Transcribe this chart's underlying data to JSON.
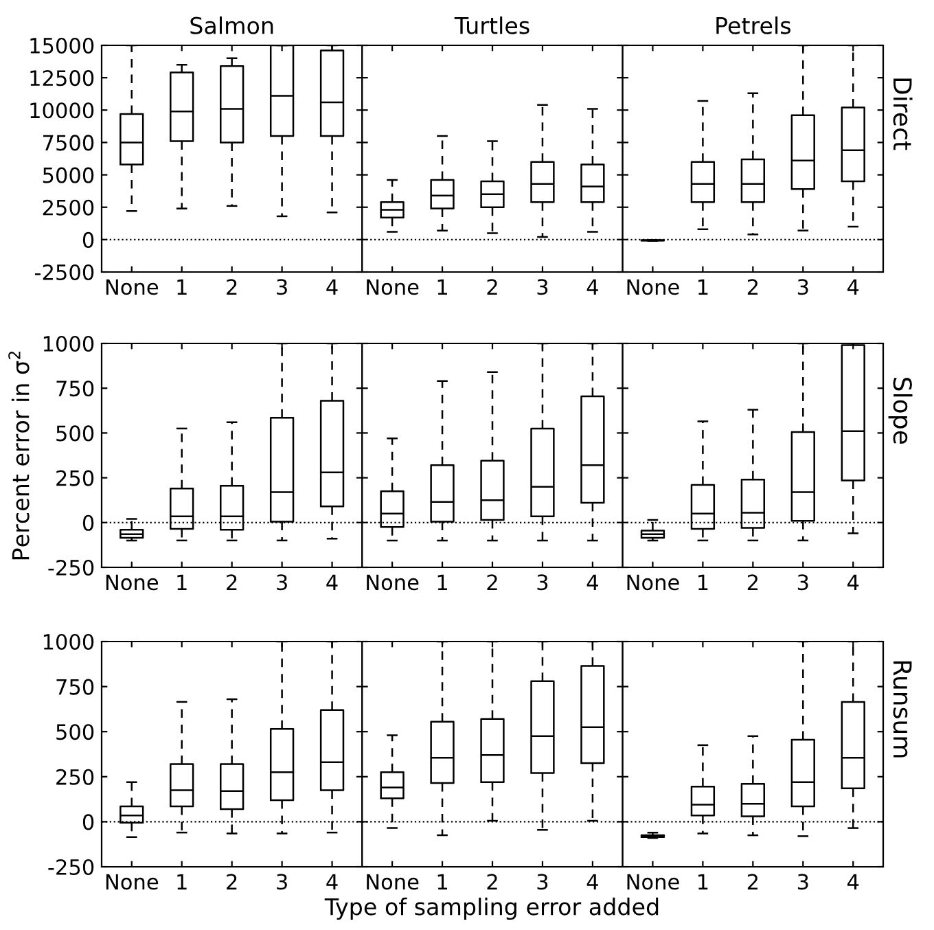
{
  "chart_data": [
    {
      "type": "box",
      "title": "Salmon",
      "categories": [
        "None",
        "1",
        "2",
        "3",
        "4"
      ],
      "ylim": [
        -2500,
        15000
      ],
      "yticks": [
        -2500,
        0,
        2500,
        5000,
        7500,
        10000,
        12500,
        15000
      ],
      "ref_lines": [
        {
          "axis": "y",
          "value": 0,
          "line_style": "dotted"
        }
      ],
      "boxes": [
        {
          "low": 2200,
          "q1": 5800,
          "median": 7500,
          "q3": 9700,
          "high": 15000
        },
        {
          "low": 2400,
          "q1": 7600,
          "median": 9900,
          "q3": 12900,
          "high": 13500
        },
        {
          "low": 2600,
          "q1": 7500,
          "median": 10100,
          "q3": 13400,
          "high": 14000
        },
        {
          "low": 1800,
          "q1": 8000,
          "median": 11100,
          "q3": 15000,
          "high": 15000
        },
        {
          "low": 2100,
          "q1": 8000,
          "median": 10600,
          "q3": 14600,
          "high": 15000
        }
      ]
    },
    {
      "type": "box",
      "title": "Turtles",
      "categories": [
        "None",
        "1",
        "2",
        "3",
        "4"
      ],
      "ylim": [
        -2500,
        15000
      ],
      "yticks": [
        -2500,
        0,
        2500,
        5000,
        7500,
        10000,
        12500,
        15000
      ],
      "tick_labels": "x",
      "ref_lines": [
        {
          "axis": "y",
          "value": 0,
          "line_style": "dotted"
        }
      ],
      "boxes": [
        {
          "low": 600,
          "q1": 1700,
          "median": 2300,
          "q3": 2900,
          "high": 4600
        },
        {
          "low": 700,
          "q1": 2400,
          "median": 3400,
          "q3": 4600,
          "high": 8000
        },
        {
          "low": 500,
          "q1": 2500,
          "median": 3500,
          "q3": 4500,
          "high": 7600
        },
        {
          "low": 200,
          "q1": 2900,
          "median": 4300,
          "q3": 6000,
          "high": 10400
        },
        {
          "low": 600,
          "q1": 2900,
          "median": 4100,
          "q3": 5800,
          "high": 10100
        }
      ]
    },
    {
      "type": "box",
      "title": "Petrels",
      "categories": [
        "None",
        "1",
        "2",
        "3",
        "4"
      ],
      "ylim": [
        -2500,
        15000
      ],
      "yticks": [
        -2500,
        0,
        2500,
        5000,
        7500,
        10000,
        12500,
        15000
      ],
      "tick_labels": "x",
      "ref_lines": [
        {
          "axis": "y",
          "value": 0,
          "line_style": "dotted"
        }
      ],
      "annotations": [
        "Direct"
      ],
      "boxes": [
        {
          "low": -100,
          "q1": -80,
          "median": -60,
          "q3": -40,
          "high": -20
        },
        {
          "low": 800,
          "q1": 2900,
          "median": 4300,
          "q3": 6000,
          "high": 10700
        },
        {
          "low": 400,
          "q1": 2900,
          "median": 4300,
          "q3": 6200,
          "high": 11300
        },
        {
          "low": 700,
          "q1": 3900,
          "median": 6100,
          "q3": 9600,
          "high": 15000
        },
        {
          "low": 1000,
          "q1": 4500,
          "median": 6900,
          "q3": 10200,
          "high": 15000
        }
      ]
    },
    {
      "type": "box",
      "ylabel": "Percent error in σ$^{2}$",
      "categories": [
        "None",
        "1",
        "2",
        "3",
        "4"
      ],
      "ylim": [
        -250,
        1000
      ],
      "yticks": [
        -250,
        0,
        250,
        500,
        750,
        1000
      ],
      "ref_lines": [
        {
          "axis": "y",
          "value": 0,
          "line_style": "dotted"
        }
      ],
      "boxes": [
        {
          "low": -100,
          "q1": -85,
          "median": -65,
          "q3": -40,
          "high": 20
        },
        {
          "low": -100,
          "q1": -35,
          "median": 35,
          "q3": 190,
          "high": 525
        },
        {
          "low": -100,
          "q1": -40,
          "median": 35,
          "q3": 205,
          "high": 560
        },
        {
          "low": -100,
          "q1": 5,
          "median": 170,
          "q3": 585,
          "high": 1000
        },
        {
          "low": -90,
          "q1": 90,
          "median": 280,
          "q3": 680,
          "high": 1000
        }
      ]
    },
    {
      "type": "box",
      "categories": [
        "None",
        "1",
        "2",
        "3",
        "4"
      ],
      "ylim": [
        -250,
        1000
      ],
      "yticks": [
        -250,
        0,
        250,
        500,
        750,
        1000
      ],
      "tick_labels": "x",
      "ref_lines": [
        {
          "axis": "y",
          "value": 0,
          "line_style": "dotted"
        }
      ],
      "boxes": [
        {
          "low": -100,
          "q1": -25,
          "median": 50,
          "q3": 175,
          "high": 470
        },
        {
          "low": -100,
          "q1": 5,
          "median": 115,
          "q3": 320,
          "high": 790
        },
        {
          "low": -100,
          "q1": 15,
          "median": 125,
          "q3": 345,
          "high": 840
        },
        {
          "low": -100,
          "q1": 35,
          "median": 200,
          "q3": 525,
          "high": 1000
        },
        {
          "low": -100,
          "q1": 110,
          "median": 320,
          "q3": 705,
          "high": 1000
        }
      ]
    },
    {
      "type": "box",
      "categories": [
        "None",
        "1",
        "2",
        "3",
        "4"
      ],
      "ylim": [
        -250,
        1000
      ],
      "yticks": [
        -250,
        0,
        250,
        500,
        750,
        1000
      ],
      "tick_labels": "x",
      "ref_lines": [
        {
          "axis": "y",
          "value": 0,
          "line_style": "dotted"
        }
      ],
      "annotations": [
        "Slope"
      ],
      "boxes": [
        {
          "low": -100,
          "q1": -85,
          "median": -65,
          "q3": -45,
          "high": 15
        },
        {
          "low": -100,
          "q1": -35,
          "median": 50,
          "q3": 210,
          "high": 565
        },
        {
          "low": -100,
          "q1": -30,
          "median": 55,
          "q3": 240,
          "high": 630
        },
        {
          "low": -100,
          "q1": 10,
          "median": 170,
          "q3": 505,
          "high": 1000
        },
        {
          "low": -60,
          "q1": 235,
          "median": 510,
          "q3": 990,
          "high": 1000
        }
      ]
    },
    {
      "type": "box",
      "categories": [
        "None",
        "1",
        "2",
        "3",
        "4"
      ],
      "ylim": [
        -250,
        1000
      ],
      "yticks": [
        -250,
        0,
        250,
        500,
        750,
        1000
      ],
      "ref_lines": [
        {
          "axis": "y",
          "value": 0,
          "line_style": "dotted"
        }
      ],
      "boxes": [
        {
          "low": -85,
          "q1": -5,
          "median": 35,
          "q3": 85,
          "high": 220
        },
        {
          "low": -60,
          "q1": 85,
          "median": 175,
          "q3": 320,
          "high": 665
        },
        {
          "low": -65,
          "q1": 70,
          "median": 170,
          "q3": 320,
          "high": 680
        },
        {
          "low": -65,
          "q1": 120,
          "median": 275,
          "q3": 515,
          "high": 1000
        },
        {
          "low": -60,
          "q1": 175,
          "median": 330,
          "q3": 620,
          "high": 1000
        }
      ]
    },
    {
      "type": "box",
      "xlabel": "Type of sampling error added",
      "categories": [
        "None",
        "1",
        "2",
        "3",
        "4"
      ],
      "ylim": [
        -250,
        1000
      ],
      "yticks": [
        -250,
        0,
        250,
        500,
        750,
        1000
      ],
      "tick_labels": "x",
      "ref_lines": [
        {
          "axis": "y",
          "value": 0,
          "line_style": "dotted"
        }
      ],
      "boxes": [
        {
          "low": -35,
          "q1": 130,
          "median": 190,
          "q3": 275,
          "high": 480
        },
        {
          "low": -75,
          "q1": 215,
          "median": 355,
          "q3": 555,
          "high": 1000
        },
        {
          "low": 5,
          "q1": 220,
          "median": 370,
          "q3": 570,
          "high": 1000
        },
        {
          "low": -45,
          "q1": 270,
          "median": 475,
          "q3": 780,
          "high": 1000
        },
        {
          "low": 5,
          "q1": 325,
          "median": 525,
          "q3": 865,
          "high": 1000
        }
      ]
    },
    {
      "type": "box",
      "categories": [
        "None",
        "1",
        "2",
        "3",
        "4"
      ],
      "ylim": [
        -250,
        1000
      ],
      "yticks": [
        -250,
        0,
        250,
        500,
        750,
        1000
      ],
      "tick_labels": "x",
      "ref_lines": [
        {
          "axis": "y",
          "value": 0,
          "line_style": "dotted"
        }
      ],
      "annotations": [
        "Runsum"
      ],
      "boxes": [
        {
          "low": -90,
          "q1": -85,
          "median": -80,
          "q3": -75,
          "high": -60
        },
        {
          "low": -65,
          "q1": 35,
          "median": 95,
          "q3": 195,
          "high": 425
        },
        {
          "low": -75,
          "q1": 30,
          "median": 100,
          "q3": 210,
          "high": 475
        },
        {
          "low": -80,
          "q1": 85,
          "median": 220,
          "q3": 455,
          "high": 1000
        },
        {
          "low": -35,
          "q1": 185,
          "median": 355,
          "q3": 665,
          "high": 1000
        }
      ]
    }
  ]
}
